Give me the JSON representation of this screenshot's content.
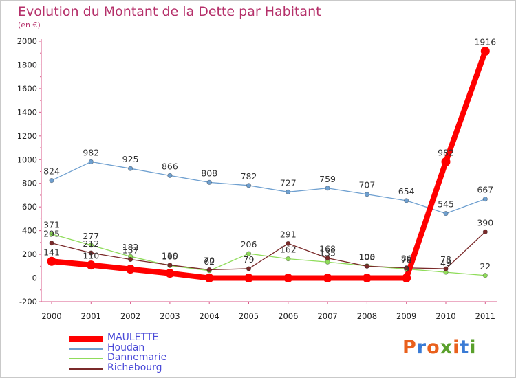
{
  "title": "Evolution du Montant de la Dette par Habitant",
  "subtitle": "(en €)",
  "logo": {
    "text": "Proxiti",
    "letters": [
      "P",
      "r",
      "o",
      "x",
      "i",
      "t",
      "i"
    ],
    "letter_colors": [
      "#e9601c",
      "#3a7bd5",
      "#e9601c",
      "#5aa02c",
      "#e9601c",
      "#3a7bd5",
      "#5aa02c"
    ]
  },
  "chart_data": {
    "type": "line",
    "title": "Evolution du Montant de la Dette par Habitant",
    "subtitle": "(en €)",
    "xlabel": "",
    "ylabel": "",
    "x": [
      "2000",
      "2001",
      "2002",
      "2003",
      "2004",
      "2005",
      "2006",
      "2007",
      "2008",
      "2009",
      "2010",
      "2011"
    ],
    "ylim": [
      -200,
      2000
    ],
    "yticks": [
      -200,
      0,
      200,
      400,
      600,
      800,
      1000,
      1200,
      1400,
      1600,
      1800,
      2000
    ],
    "grid": false,
    "legend_position": "bottom-left",
    "series": [
      {
        "name": "MAULETTE",
        "color": "#ff0000",
        "values": [
          141,
          110,
          75,
          40,
          0,
          0,
          0,
          0,
          0,
          0,
          982,
          1916
        ],
        "labels": [
          "141",
          "110",
          "",
          "",
          "",
          "",
          "",
          "",
          "",
          "0",
          "982",
          "1916"
        ]
      },
      {
        "name": "Houdan",
        "color": "#6fa0d0",
        "values": [
          824,
          982,
          925,
          866,
          808,
          782,
          727,
          759,
          707,
          654,
          545,
          667
        ],
        "labels": [
          "824",
          "982",
          "925",
          "866",
          "808",
          "782",
          "727",
          "759",
          "707",
          "654",
          "545",
          "667"
        ]
      },
      {
        "name": "Dannemarie",
        "color": "#8fdc5a",
        "values": [
          371,
          277,
          182,
          105,
          62,
          206,
          162,
          135,
          103,
          76,
          49,
          22
        ],
        "labels": [
          "371",
          "277",
          "182",
          "105",
          "62",
          "206",
          "162",
          "135",
          "103",
          "76",
          "49",
          "22"
        ]
      },
      {
        "name": "Richebourg",
        "color": "#7a2a2a",
        "values": [
          295,
          212,
          157,
          110,
          70,
          79,
          291,
          168,
          100,
          86,
          78,
          390
        ],
        "labels": [
          "295",
          "212",
          "157",
          "110",
          "70",
          "79",
          "291",
          "168",
          "100",
          "86",
          "78",
          "390"
        ]
      }
    ]
  }
}
